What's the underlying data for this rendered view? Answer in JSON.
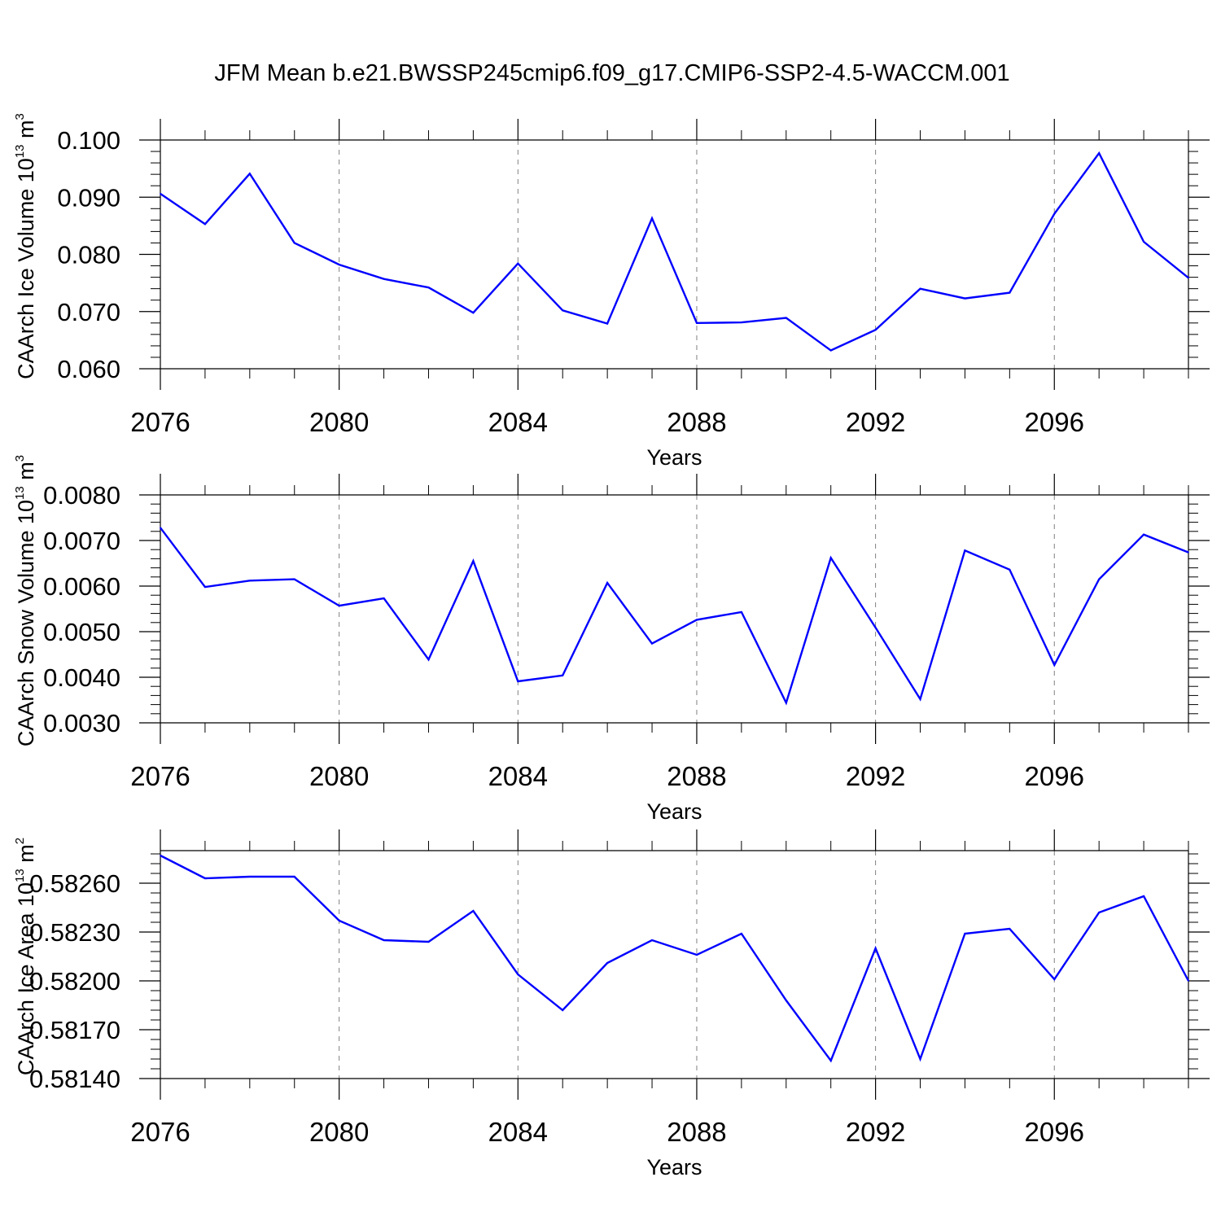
{
  "title": "JFM Mean b.e21.BWSSP245cmip6.f09_g17.CMIP6-SSP2-4.5-WACCM.001",
  "colors": {
    "line": "#0000ff",
    "axis": "#000000",
    "grid": "#808080"
  },
  "chart_data": [
    {
      "type": "line",
      "xlabel": "Years",
      "ylabel": "CAArch Ice Volume 10",
      "ylabel_exp": "13",
      "ylabel_unit": " m",
      "ylabel_unit_exp": "3",
      "xlim": [
        2076,
        2099
      ],
      "ylim": [
        0.06,
        0.1
      ],
      "ylim_top_visible": 0.1,
      "xticks": [
        2076,
        2080,
        2084,
        2088,
        2092,
        2096
      ],
      "xtick_labels": [
        "2076",
        "2080",
        "2084",
        "2088",
        "2092",
        "2096"
      ],
      "yticks": [
        0.06,
        0.07,
        0.08,
        0.09,
        0.1
      ],
      "ytick_labels": [
        "0.060",
        "0.070",
        "0.080",
        "0.090",
        "0.100"
      ],
      "x": [
        2076,
        2077,
        2078,
        2079,
        2080,
        2081,
        2082,
        2083,
        2084,
        2085,
        2086,
        2087,
        2088,
        2089,
        2090,
        2091,
        2092,
        2093,
        2094,
        2095,
        2096,
        2097,
        2098,
        2099
      ],
      "values": [
        0.0906,
        0.0853,
        0.0941,
        0.082,
        0.0782,
        0.0757,
        0.0742,
        0.0698,
        0.0784,
        0.0702,
        0.0679,
        0.0863,
        0.068,
        0.0681,
        0.0689,
        0.0632,
        0.0668,
        0.074,
        0.0723,
        0.0733,
        0.0871,
        0.0977,
        0.0822,
        0.0759
      ]
    },
    {
      "type": "line",
      "xlabel": "Years",
      "ylabel": "CAArch Snow Volume 10",
      "ylabel_exp": "13",
      "ylabel_unit": " m",
      "ylabel_unit_exp": "3",
      "xlim": [
        2076,
        2099
      ],
      "ylim": [
        0.003,
        0.008
      ],
      "xticks": [
        2076,
        2080,
        2084,
        2088,
        2092,
        2096
      ],
      "xtick_labels": [
        "2076",
        "2080",
        "2084",
        "2088",
        "2092",
        "2096"
      ],
      "yticks": [
        0.003,
        0.004,
        0.005,
        0.006,
        0.007,
        0.008
      ],
      "ytick_labels": [
        "0.0030",
        "0.0040",
        "0.0050",
        "0.0060",
        "0.0070",
        "0.0080"
      ],
      "x": [
        2076,
        2077,
        2078,
        2079,
        2080,
        2081,
        2082,
        2083,
        2084,
        2085,
        2086,
        2087,
        2088,
        2089,
        2090,
        2091,
        2092,
        2093,
        2094,
        2095,
        2096,
        2097,
        2098,
        2099
      ],
      "values": [
        0.00728,
        0.00598,
        0.00612,
        0.00615,
        0.00557,
        0.00573,
        0.00439,
        0.00655,
        0.00391,
        0.00404,
        0.00607,
        0.00474,
        0.00526,
        0.00543,
        0.00344,
        0.00662,
        0.00509,
        0.00352,
        0.00678,
        0.00636,
        0.00427,
        0.00615,
        0.00713,
        0.00674
      ]
    },
    {
      "type": "line",
      "xlabel": "Years",
      "ylabel": "CAArch Ice Area 10",
      "ylabel_exp": "13",
      "ylabel_unit": " m",
      "ylabel_unit_exp": "2",
      "xlim": [
        2076,
        2099
      ],
      "ylim": [
        0.5814,
        0.5828
      ],
      "xticks": [
        2076,
        2080,
        2084,
        2088,
        2092,
        2096
      ],
      "xtick_labels": [
        "2076",
        "2080",
        "2084",
        "2088",
        "2092",
        "2096"
      ],
      "yticks": [
        0.5814,
        0.5817,
        0.582,
        0.5823,
        0.5826
      ],
      "ytick_labels": [
        "0.58140",
        "0.58170",
        "0.58200",
        "0.58230",
        "0.58260"
      ],
      "x": [
        2076,
        2077,
        2078,
        2079,
        2080,
        2081,
        2082,
        2083,
        2084,
        2085,
        2086,
        2087,
        2088,
        2089,
        2090,
        2091,
        2092,
        2093,
        2094,
        2095,
        2096,
        2097,
        2098,
        2099
      ],
      "values": [
        0.58277,
        0.58263,
        0.58264,
        0.58264,
        0.58237,
        0.58225,
        0.58224,
        0.58243,
        0.58204,
        0.58182,
        0.58211,
        0.58225,
        0.58216,
        0.58229,
        0.58188,
        0.58151,
        0.5822,
        0.58152,
        0.58229,
        0.58232,
        0.58201,
        0.58242,
        0.58252,
        0.582
      ]
    }
  ]
}
